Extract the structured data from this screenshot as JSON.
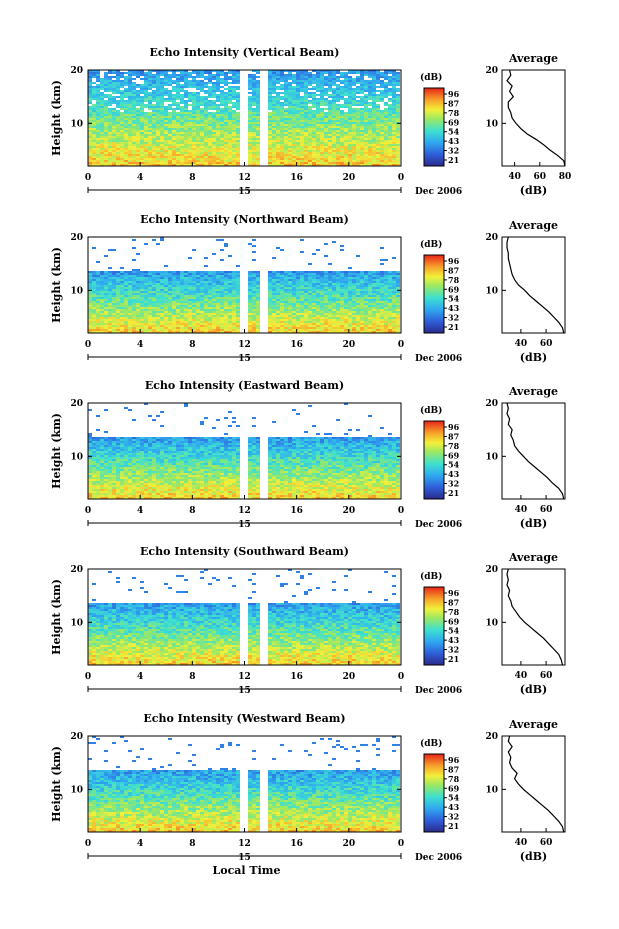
{
  "chart_data": [
    {
      "type": "heatmap",
      "title": "Echo Intensity (Vertical Beam)",
      "ylabel": "Height (km)",
      "x_ticks": [
        "0",
        "4",
        "8",
        "12",
        "16",
        "20",
        "0"
      ],
      "xlim": [
        0,
        24
      ],
      "y_ticks": [
        "20",
        "10"
      ],
      "ylim": [
        2,
        20
      ],
      "date_day": "15",
      "date_label": "Dec 2006",
      "colorbar": {
        "unit": "(dB)",
        "ticks": [
          "96",
          "87",
          "78",
          "69",
          "54",
          "43",
          "32",
          "21"
        ]
      },
      "profile": {
        "title": "Average",
        "xlabel": "(dB)",
        "x_ticks": [
          "40",
          "60",
          "80"
        ],
        "xlim": [
          30,
          80
        ],
        "y_ticks": [
          "20",
          "10"
        ],
        "ylim": [
          2,
          20
        ],
        "heights": [
          2,
          3,
          4,
          5,
          6,
          7,
          8,
          9,
          10,
          11,
          12,
          13,
          14,
          15,
          16,
          17,
          18,
          19,
          20
        ],
        "values": [
          80,
          79,
          74,
          68,
          63,
          57,
          50,
          45,
          41,
          38,
          37,
          35,
          35,
          39,
          36,
          38,
          34,
          37,
          36
        ]
      }
    },
    {
      "type": "heatmap",
      "title": "Echo Intensity (Northward Beam)",
      "ylabel": "Height (km)",
      "x_ticks": [
        "0",
        "4",
        "8",
        "12",
        "16",
        "20",
        "0"
      ],
      "xlim": [
        0,
        24
      ],
      "y_ticks": [
        "20",
        "10"
      ],
      "ylim": [
        2,
        20
      ],
      "date_day": "15",
      "date_label": "Dec 2006",
      "colorbar": {
        "unit": "(dB)",
        "ticks": [
          "96",
          "87",
          "78",
          "69",
          "54",
          "43",
          "32",
          "21"
        ]
      },
      "profile": {
        "title": "Average",
        "xlabel": "(dB)",
        "x_ticks": [
          "40",
          "60"
        ],
        "xlim": [
          25,
          75
        ],
        "y_ticks": [
          "20",
          "10"
        ],
        "ylim": [
          2,
          20
        ],
        "heights": [
          2,
          3,
          4,
          5,
          6,
          7,
          8,
          9,
          10,
          11,
          12,
          13,
          14,
          15,
          16,
          17,
          18,
          19,
          20
        ],
        "values": [
          74,
          73,
          70,
          66,
          62,
          57,
          52,
          47,
          43,
          38,
          35,
          33,
          32,
          31,
          30,
          30,
          29,
          29,
          30
        ]
      }
    },
    {
      "type": "heatmap",
      "title": "Echo Intensity (Eastward Beam)",
      "ylabel": "Height (km)",
      "x_ticks": [
        "0",
        "4",
        "8",
        "12",
        "16",
        "20",
        "0"
      ],
      "xlim": [
        0,
        24
      ],
      "y_ticks": [
        "20",
        "10"
      ],
      "ylim": [
        2,
        20
      ],
      "date_day": "15",
      "date_label": "Dec 2006",
      "colorbar": {
        "unit": "(dB)",
        "ticks": [
          "96",
          "87",
          "78",
          "69",
          "54",
          "43",
          "32",
          "21"
        ]
      },
      "profile": {
        "title": "Average",
        "xlabel": "(dB)",
        "x_ticks": [
          "40",
          "60"
        ],
        "xlim": [
          25,
          75
        ],
        "y_ticks": [
          "20",
          "10"
        ],
        "ylim": [
          2,
          20
        ],
        "heights": [
          2,
          3,
          4,
          5,
          6,
          7,
          8,
          9,
          10,
          11,
          12,
          13,
          14,
          15,
          16,
          17,
          18,
          19,
          20
        ],
        "values": [
          74,
          73,
          70,
          65,
          61,
          56,
          51,
          46,
          42,
          38,
          35,
          34,
          32,
          33,
          30,
          31,
          29,
          30,
          29
        ]
      }
    },
    {
      "type": "heatmap",
      "title": "Echo Intensity (Southward Beam)",
      "ylabel": "Height (km)",
      "x_ticks": [
        "0",
        "4",
        "8",
        "12",
        "16",
        "20",
        "0"
      ],
      "xlim": [
        0,
        24
      ],
      "y_ticks": [
        "20",
        "10"
      ],
      "ylim": [
        2,
        20
      ],
      "date_day": "15",
      "date_label": "Dec 2006",
      "colorbar": {
        "unit": "(dB)",
        "ticks": [
          "96",
          "87",
          "78",
          "69",
          "54",
          "43",
          "32",
          "21"
        ]
      },
      "profile": {
        "title": "Average",
        "xlabel": "(dB)",
        "x_ticks": [
          "40",
          "60"
        ],
        "xlim": [
          25,
          75
        ],
        "y_ticks": [
          "20",
          "10"
        ],
        "ylim": [
          2,
          20
        ],
        "heights": [
          2,
          3,
          4,
          5,
          6,
          7,
          8,
          9,
          10,
          11,
          12,
          13,
          14,
          15,
          16,
          17,
          18,
          19,
          20
        ],
        "values": [
          73,
          72,
          70,
          66,
          62,
          58,
          53,
          48,
          43,
          39,
          36,
          33,
          32,
          30,
          31,
          29,
          30,
          29,
          30
        ]
      }
    },
    {
      "type": "heatmap",
      "title": "Echo Intensity (Westward Beam)",
      "ylabel": "Height (km)",
      "xlabel": "Local Time",
      "x_ticks": [
        "0",
        "4",
        "8",
        "12",
        "16",
        "20",
        "0"
      ],
      "xlim": [
        0,
        24
      ],
      "y_ticks": [
        "20",
        "10"
      ],
      "ylim": [
        2,
        20
      ],
      "date_day": "15",
      "date_label": "Dec 2006",
      "colorbar": {
        "unit": "(dB)",
        "ticks": [
          "96",
          "87",
          "78",
          "69",
          "54",
          "43",
          "32",
          "21"
        ]
      },
      "profile": {
        "title": "Average",
        "xlabel": "(dB)",
        "x_ticks": [
          "40",
          "60"
        ],
        "xlim": [
          25,
          75
        ],
        "y_ticks": [
          "20",
          "10"
        ],
        "ylim": [
          2,
          20
        ],
        "heights": [
          2,
          3,
          4,
          5,
          6,
          7,
          8,
          9,
          10,
          11,
          12,
          13,
          14,
          15,
          16,
          17,
          18,
          19,
          20
        ],
        "values": [
          74,
          73,
          70,
          66,
          62,
          57,
          52,
          47,
          42,
          38,
          35,
          37,
          33,
          31,
          32,
          30,
          33,
          30,
          31
        ]
      }
    }
  ]
}
